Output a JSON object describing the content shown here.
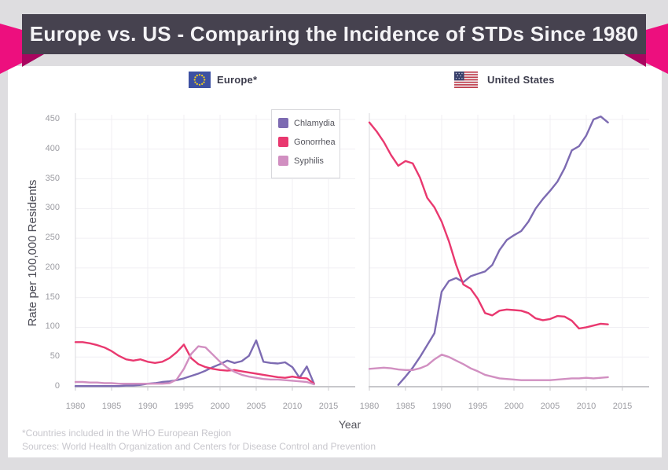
{
  "banner": {
    "title": "Europe vs. US - Comparing the Incidence of STDs Since 1980",
    "bg_color": "#46424f",
    "ribbon_color": "#ed0f7e",
    "ribbon_fold_color": "#a9055f"
  },
  "charts": {
    "europe": {
      "label": "Europe*"
    },
    "us": {
      "label": "United States"
    }
  },
  "axes": {
    "y_title": "Rate per 100,000 Residents",
    "x_title": "Year",
    "y_ticks": [
      0,
      50,
      100,
      150,
      200,
      250,
      300,
      350,
      400,
      450
    ],
    "x_ticks": [
      1980,
      1985,
      1990,
      1995,
      2000,
      2005,
      2010,
      2015
    ]
  },
  "legend": {
    "items": [
      {
        "label": "Chlamydia",
        "color": "#7d6bb2"
      },
      {
        "label": "Gonorrhea",
        "color": "#e9386f"
      },
      {
        "label": "Syphilis",
        "color": "#d18fc1"
      }
    ]
  },
  "footer": {
    "note": "*Countries included in the WHO European Region",
    "sources": "Sources: World Health Organization and Centers for Disease Control and Prevention"
  },
  "chart_data": [
    {
      "type": "line",
      "title": "Europe*",
      "xlabel": "Year",
      "ylabel": "Rate per 100,000 Residents",
      "ylim": [
        0,
        450
      ],
      "xlim": [
        1980,
        2016
      ],
      "grid": true,
      "x": [
        1980,
        1981,
        1982,
        1983,
        1984,
        1985,
        1986,
        1987,
        1988,
        1989,
        1990,
        1991,
        1992,
        1993,
        1994,
        1995,
        1996,
        1997,
        1998,
        1999,
        2000,
        2001,
        2002,
        2003,
        2004,
        2005,
        2006,
        2007,
        2008,
        2009,
        2010,
        2011,
        2012,
        2013
      ],
      "series": [
        {
          "name": "Chlamydia",
          "color": "#7d6bb2",
          "values": [
            1,
            1,
            1,
            1,
            1,
            1,
            1,
            2,
            2,
            3,
            5,
            6,
            8,
            9,
            11,
            14,
            18,
            22,
            27,
            33,
            38,
            44,
            40,
            43,
            52,
            78,
            42,
            40,
            39,
            41,
            33,
            15,
            34,
            5
          ]
        },
        {
          "name": "Gonorrhea",
          "color": "#e9386f",
          "values": [
            75,
            75,
            73,
            70,
            66,
            60,
            52,
            46,
            44,
            46,
            42,
            40,
            42,
            48,
            58,
            71,
            48,
            38,
            33,
            30,
            28,
            27,
            28,
            26,
            24,
            22,
            20,
            18,
            16,
            15,
            17,
            15,
            14,
            5
          ]
        },
        {
          "name": "Syphilis",
          "color": "#d18fc1",
          "values": [
            8,
            8,
            7,
            7,
            6,
            6,
            5,
            5,
            5,
            5,
            5,
            5,
            5,
            6,
            12,
            30,
            55,
            68,
            66,
            54,
            42,
            32,
            25,
            20,
            17,
            15,
            13,
            12,
            12,
            11,
            10,
            9,
            8,
            4
          ]
        }
      ]
    },
    {
      "type": "line",
      "title": "United States",
      "xlabel": "Year",
      "ylabel": "Rate per 100,000 Residents",
      "ylim": [
        0,
        450
      ],
      "xlim": [
        1980,
        2016
      ],
      "grid": true,
      "x": [
        1980,
        1981,
        1982,
        1983,
        1984,
        1985,
        1986,
        1987,
        1988,
        1989,
        1990,
        1991,
        1992,
        1993,
        1994,
        1995,
        1996,
        1997,
        1998,
        1999,
        2000,
        2001,
        2002,
        2003,
        2004,
        2005,
        2006,
        2007,
        2008,
        2009,
        2010,
        2011,
        2012,
        2013
      ],
      "series": [
        {
          "name": "Chlamydia",
          "color": "#7d6bb2",
          "values": [
            null,
            null,
            null,
            null,
            3,
            17,
            32,
            50,
            70,
            90,
            160,
            178,
            183,
            176,
            186,
            190,
            194,
            205,
            230,
            247,
            255,
            262,
            278,
            300,
            316,
            330,
            345,
            368,
            398,
            405,
            423,
            450,
            455,
            445
          ]
        },
        {
          "name": "Gonorrhea",
          "color": "#e9386f",
          "values": [
            445,
            430,
            412,
            390,
            372,
            380,
            376,
            352,
            318,
            302,
            278,
            245,
            205,
            172,
            165,
            148,
            124,
            120,
            128,
            130,
            129,
            128,
            124,
            115,
            112,
            114,
            119,
            118,
            111,
            98,
            100,
            103,
            106,
            105
          ]
        },
        {
          "name": "Syphilis",
          "color": "#d18fc1",
          "values": [
            30,
            31,
            32,
            31,
            29,
            28,
            28,
            31,
            36,
            46,
            54,
            50,
            44,
            38,
            31,
            26,
            20,
            17,
            14,
            13,
            12,
            11,
            11,
            11,
            11,
            11,
            12,
            13,
            14,
            14,
            15,
            14,
            15,
            16
          ]
        }
      ]
    }
  ]
}
